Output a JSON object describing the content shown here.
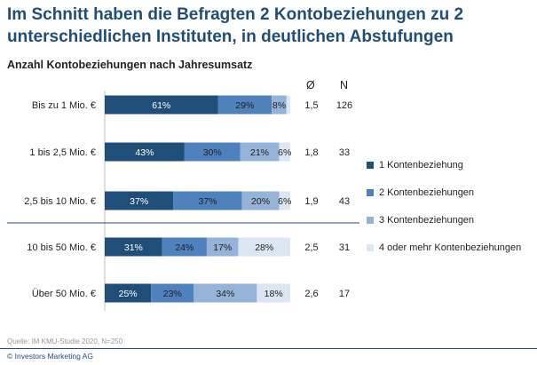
{
  "title": "Im Schnitt haben die Befragten 2 Kontobeziehungen zu 2 unterschiedlichen Instituten, in deutlichen Abstufungen",
  "subtitle": "Anzahl Kontobeziehungen nach Jahresumsatz",
  "columns": {
    "avg": "Ø",
    "n": "N"
  },
  "source": "Quelle: IM KMU-Studie 2020, N=250",
  "copyright": "© Investors Marketing AG",
  "colors": [
    "#1f4e79",
    "#4f81bd",
    "#95b3d7",
    "#dce6f2"
  ],
  "chart_data": {
    "type": "bar",
    "orientation": "horizontal",
    "stacked": true,
    "categories": [
      "Bis zu 1 Mio. €",
      "1 bis 2,5 Mio. €",
      "2,5 bis 10 Mio. €",
      "10 bis 50 Mio. €",
      "Über 50 Mio. €"
    ],
    "series": [
      {
        "name": "1 Kontenbeziehung",
        "values": [
          61,
          43,
          37,
          31,
          25
        ]
      },
      {
        "name": "2 Kontenbeziehungen",
        "values": [
          29,
          30,
          37,
          24,
          23
        ]
      },
      {
        "name": "3 Kontenbeziehungen",
        "values": [
          8,
          21,
          20,
          17,
          34
        ]
      },
      {
        "name": "4 oder mehr Kontenbeziehungen",
        "values": [
          2,
          6,
          6,
          28,
          18
        ]
      }
    ],
    "labels": [
      [
        "61%",
        "29%",
        "8%",
        ""
      ],
      [
        "43%",
        "30%",
        "21%",
        "6%"
      ],
      [
        "37%",
        "37%",
        "20%",
        "6%"
      ],
      [
        "31%",
        "24%",
        "17%",
        "28%"
      ],
      [
        "25%",
        "23%",
        "34%",
        "18%"
      ]
    ],
    "avg": [
      "1,5",
      "1,8",
      "1,9",
      "2,5",
      "2,6"
    ],
    "n": [
      "126",
      "33",
      "43",
      "31",
      "17"
    ],
    "xlim": [
      0,
      100
    ],
    "legend_position": "right"
  }
}
